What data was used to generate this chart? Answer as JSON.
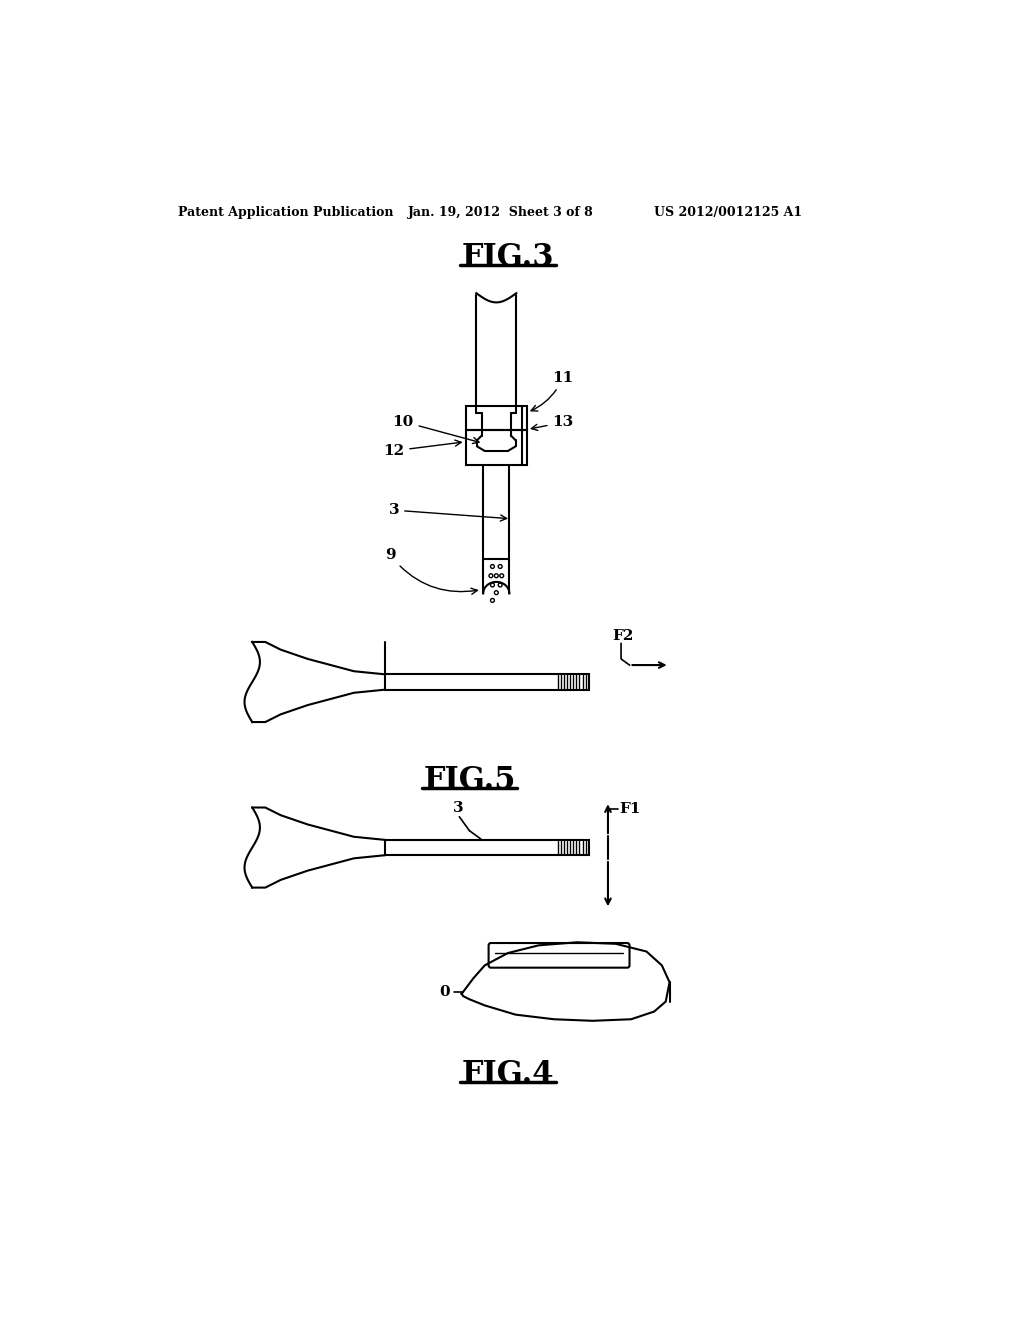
{
  "bg_color": "#ffffff",
  "header_left": "Patent Application Publication",
  "header_mid": "Jan. 19, 2012  Sheet 3 of 8",
  "header_right": "US 2012/0012125 A1",
  "fig3_title": "FIG.3",
  "fig4_title": "FIG.4",
  "fig5_title": "FIG.5",
  "line_color": "#000000"
}
